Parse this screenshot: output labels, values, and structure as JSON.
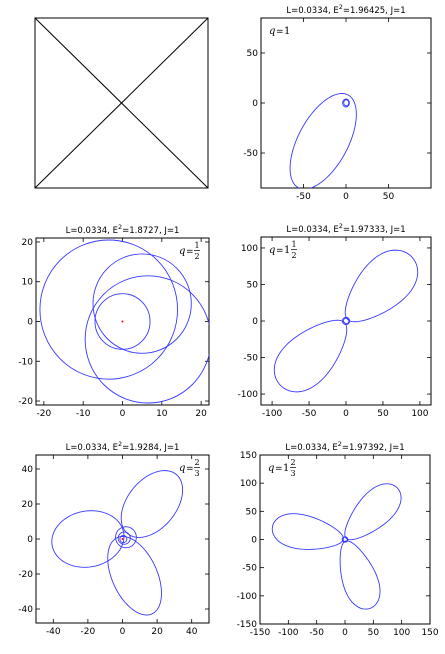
{
  "figure_caption": "",
  "chart_data": [
    {
      "id": "schematic",
      "type": "diagram",
      "title": "",
      "description_shown": "empty box with two diagonal lines crossing"
    },
    {
      "id": "q1",
      "type": "line",
      "title": "L=0.0334, E²=1.96425, J=1",
      "title_parts": {
        "pre": "L=0.0334, E",
        "sup": "2",
        "post": "=1.96425, J=1"
      },
      "q_label": {
        "whole": "1",
        "num": "",
        "den": ""
      },
      "xlim": [
        -100,
        100
      ],
      "ylim": [
        -85,
        85
      ],
      "xticks": [
        -50,
        0,
        50
      ],
      "yticks": [
        -50,
        0,
        50
      ],
      "xtick_labels": [
        "-50",
        "0",
        "50"
      ],
      "ytick_labels": [
        "-50",
        "0",
        "50"
      ],
      "series": [
        {
          "color": "#3a3aff",
          "petals": 1,
          "zoom_ellipse": {
            "a": 55,
            "b": 28,
            "angle_deg": 55,
            "near_origin": 0
          },
          "whirl_radius": 4
        }
      ]
    },
    {
      "id": "q1_2",
      "type": "line",
      "title": "L=0.0334, E²=1.8727, J=1",
      "title_parts": {
        "pre": "L=0.0334, E",
        "sup": "2",
        "post": "=1.8727, J=1"
      },
      "q_label": {
        "whole": "",
        "num": "1",
        "den": "2"
      },
      "xlim": [
        -22,
        22
      ],
      "ylim": [
        -21,
        21
      ],
      "xticks": [
        -20,
        -10,
        0,
        10,
        20
      ],
      "yticks": [
        -20,
        -10,
        0,
        10,
        20
      ],
      "xtick_labels": [
        "-20",
        "-10",
        "0",
        "10",
        "20"
      ],
      "ytick_labels": [
        "-20",
        "-10",
        "0",
        "10",
        "20"
      ],
      "series": [
        {
          "color": "#3a3aff",
          "circles": [
            {
              "cx": -3.5,
              "cy": 3,
              "r": 17.5
            },
            {
              "cx": 6.5,
              "cy": -4.5,
              "r": 16
            },
            {
              "cx": 5,
              "cy": 4.5,
              "r": 12.5
            },
            {
              "cx": 0,
              "cy": 0,
              "r": 7
            }
          ]
        }
      ],
      "center_marker_color": "#ff0000"
    },
    {
      "id": "q1_1_2",
      "type": "line",
      "title": "L=0.0334, E²=1.97333, J=1",
      "title_parts": {
        "pre": "L=0.0334, E",
        "sup": "2",
        "post": "=1.97333, J=1"
      },
      "q_label": {
        "whole": "1",
        "num": "1",
        "den": "2"
      },
      "xlim": [
        -115,
        115
      ],
      "ylim": [
        -115,
        115
      ],
      "xticks": [
        -100,
        -50,
        0,
        50,
        100
      ],
      "yticks": [
        -100,
        -50,
        0,
        50,
        100
      ],
      "xtick_labels": [
        "-100",
        "-50",
        "0",
        "50",
        "100"
      ],
      "ytick_labels": [
        "-100",
        "-50",
        "0",
        "50",
        "100"
      ],
      "series": [
        {
          "color": "#3a3aff",
          "petals": 2,
          "petal": {
            "far": 125,
            "near": 3,
            "width": 42,
            "angles_deg": [
              45,
              225
            ]
          },
          "whirl_radius": 5
        }
      ]
    },
    {
      "id": "q2_3",
      "type": "line",
      "title": "L=0.0334, E²=1.9284, J=1",
      "title_parts": {
        "pre": "L=0.0334, E",
        "sup": "2",
        "post": "=1.9284, J=1"
      },
      "q_label": {
        "whole": "",
        "num": "2",
        "den": "3"
      },
      "xlim": [
        -50,
        50
      ],
      "ylim": [
        -48,
        48
      ],
      "xticks": [
        -40,
        -20,
        0,
        20,
        40
      ],
      "yticks": [
        -40,
        -20,
        0,
        20,
        40
      ],
      "xtick_labels": [
        "-40",
        "-20",
        "0",
        "20",
        "40"
      ],
      "ytick_labels": [
        "-40",
        "-20",
        "0",
        "20",
        "40"
      ],
      "series": [
        {
          "color": "#3a3aff",
          "ellipses": [
            {
              "cx": -20,
              "cy": 0,
              "rx": 21,
              "ry": 16,
              "angle_deg": 10
            },
            {
              "cx": 17,
              "cy": 20,
              "rx": 22,
              "ry": 14,
              "angle_deg": 50
            },
            {
              "cx": 7,
              "cy": -21,
              "rx": 24,
              "ry": 13,
              "angle_deg": -65
            },
            {
              "cx": 2,
              "cy": 1,
              "rx": 6,
              "ry": 6,
              "angle_deg": 0
            },
            {
              "cx": 1,
              "cy": 0.5,
              "rx": 3.5,
              "ry": 3.5,
              "angle_deg": 0
            },
            {
              "cx": 0.5,
              "cy": 0,
              "rx": 2,
              "ry": 2,
              "angle_deg": 0
            }
          ]
        }
      ],
      "center_marker_color": "#ff0000"
    },
    {
      "id": "q1_2_3",
      "type": "line",
      "title": "L=0.0334, E²=1.97392, J=1",
      "title_parts": {
        "pre": "L=0.0334, E",
        "sup": "2",
        "post": "=1.97392, J=1"
      },
      "q_label": {
        "whole": "1",
        "num": "2",
        "den": "3"
      },
      "xlim": [
        -150,
        150
      ],
      "ylim": [
        -150,
        150
      ],
      "xticks": [
        -150,
        -100,
        -50,
        0,
        50,
        100,
        150
      ],
      "yticks": [
        -150,
        -100,
        -50,
        0,
        50,
        100,
        150
      ],
      "xtick_labels": [
        "-150",
        "-100",
        "-50",
        "0",
        "50",
        "100",
        "150"
      ],
      "ytick_labels": [
        "-150",
        "-100",
        "-50",
        "0",
        "50",
        "100",
        "150"
      ],
      "series": [
        {
          "color": "#3a3aff",
          "petals": 3,
          "petal": {
            "far": 130,
            "near": 3,
            "width": 38,
            "angles_deg": [
              45,
              170,
              290
            ]
          },
          "whirl_radius": 5
        }
      ]
    }
  ]
}
